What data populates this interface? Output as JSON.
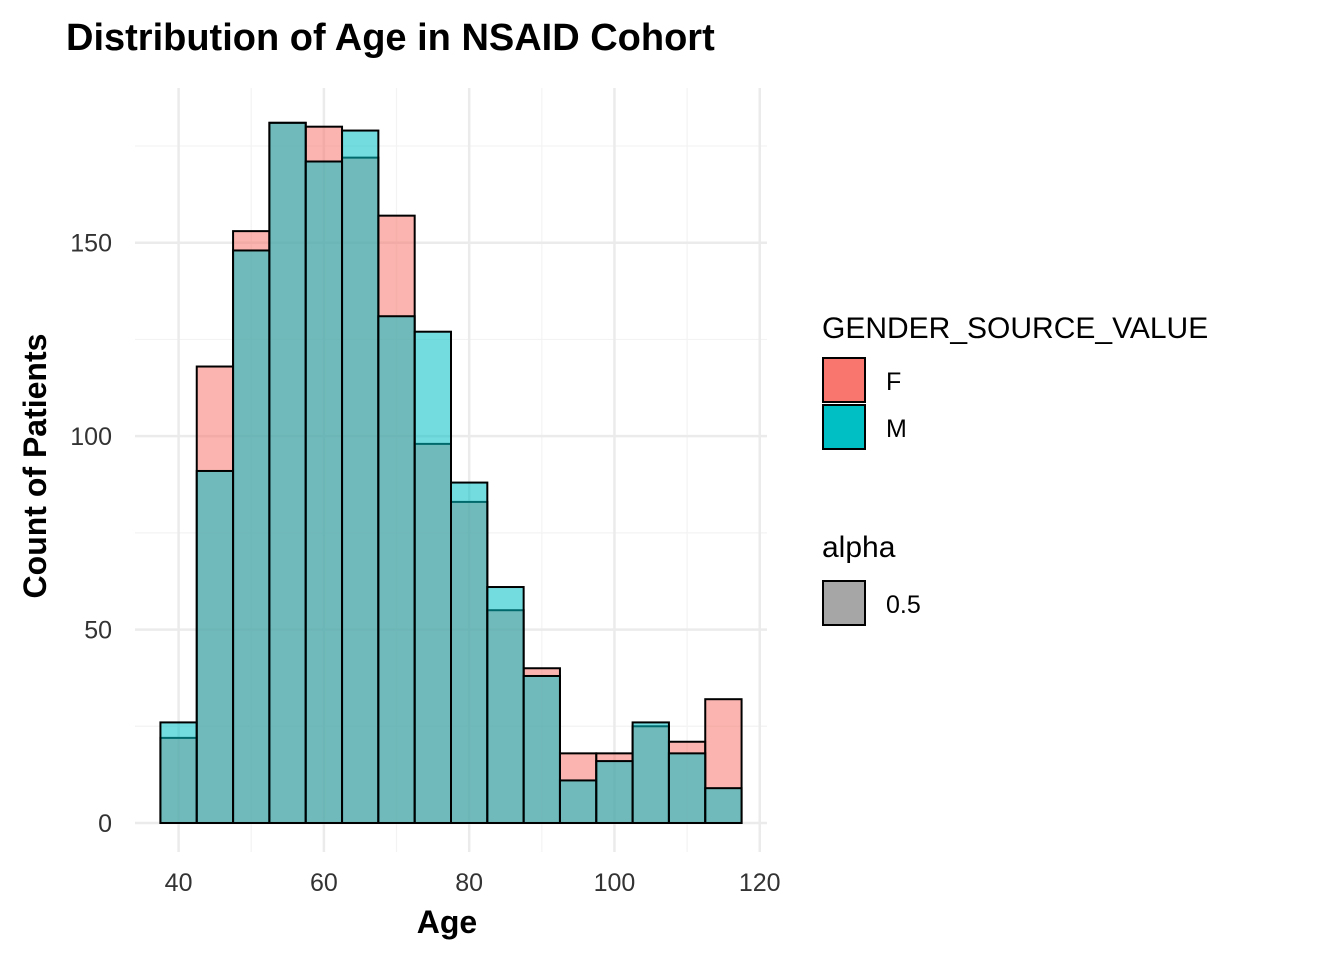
{
  "chart_data": {
    "type": "bar",
    "subtype": "overlapping-histogram",
    "title": "Distribution of Age in NSAID Cohort",
    "xlabel": "Age",
    "ylabel": "Count of Patients",
    "xlim": [
      34,
      121
    ],
    "ylim": [
      -7.5,
      190
    ],
    "x_ticks": [
      40,
      60,
      80,
      100,
      120
    ],
    "y_ticks": [
      0,
      50,
      100,
      150
    ],
    "bin_width": 5,
    "bin_centers": [
      40,
      45,
      50,
      55,
      60,
      65,
      70,
      75,
      80,
      85,
      90,
      95,
      100,
      105,
      110,
      115
    ],
    "series": [
      {
        "name": "F",
        "color": "#F8766D",
        "values": [
          22,
          118,
          153,
          181,
          180,
          172,
          157,
          98,
          83,
          55,
          40,
          18,
          18,
          25,
          21,
          32
        ]
      },
      {
        "name": "M",
        "color": "#00BFC4",
        "values": [
          26,
          91,
          148,
          181,
          171,
          179,
          131,
          127,
          88,
          61,
          38,
          11,
          16,
          26,
          18,
          9
        ]
      }
    ],
    "grid": true,
    "legend": {
      "position": "right",
      "fill_title": "GENDER_SOURCE_VALUE",
      "fill_entries": [
        {
          "label": "F",
          "color": "#F8766D"
        },
        {
          "label": "M",
          "color": "#00BFC4"
        }
      ],
      "alpha_title": "alpha",
      "alpha_entries": [
        {
          "label": "0.5",
          "color": "#a6a6a6"
        }
      ]
    },
    "alpha": 0.55
  }
}
